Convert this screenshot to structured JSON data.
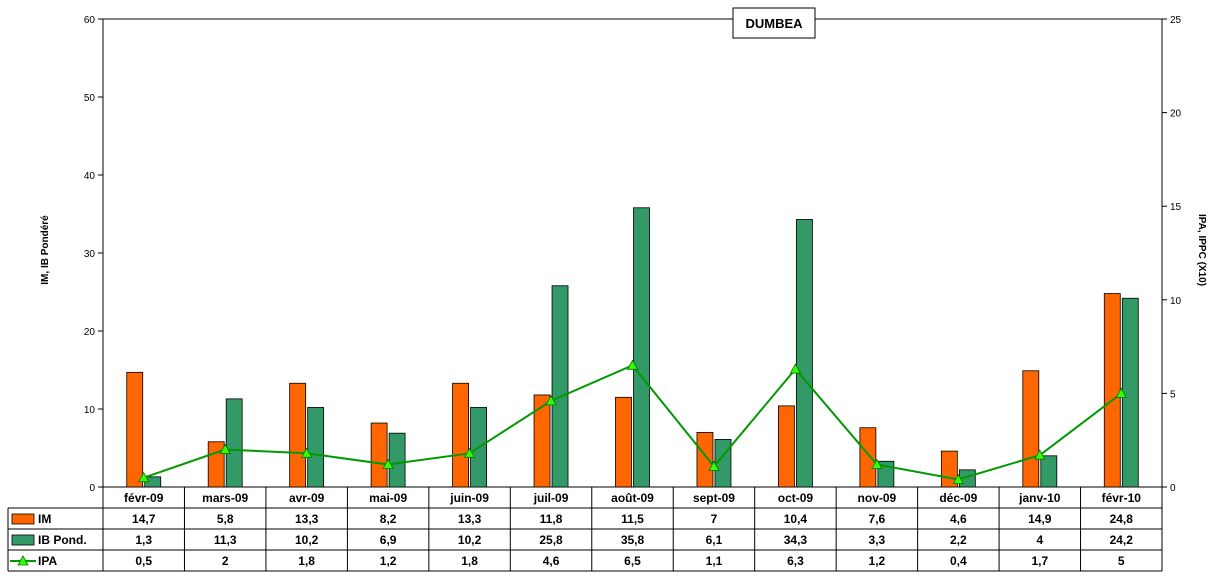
{
  "chart_data": {
    "type": "bar",
    "title": "DUMBEA",
    "categories": [
      "févr-09",
      "mars-09",
      "avr-09",
      "mai-09",
      "juin-09",
      "juil-09",
      "août-09",
      "sept-09",
      "oct-09",
      "nov-09",
      "déc-09",
      "janv-10",
      "févr-10"
    ],
    "left_axis": {
      "label": "IM, IB Pondéré",
      "ylim": [
        0,
        60
      ],
      "ticks": [
        0,
        10,
        20,
        30,
        40,
        50,
        60
      ]
    },
    "right_axis": {
      "label": "IPA, IPPC (X10)",
      "ylim": [
        0,
        25
      ],
      "ticks": [
        0,
        5,
        10,
        15,
        20,
        25
      ]
    },
    "grid": false,
    "legend": "data-table-below",
    "series": [
      {
        "name": "IM",
        "kind": "bar",
        "axis": "left",
        "color": "#ff6600",
        "values": [
          14.7,
          5.8,
          13.3,
          8.2,
          13.3,
          11.8,
          11.5,
          7,
          10.4,
          7.6,
          4.6,
          14.9,
          24.8
        ],
        "labels": [
          "14,7",
          "5,8",
          "13,3",
          "8,2",
          "13,3",
          "11,8",
          "11,5",
          "7",
          "10,4",
          "7,6",
          "4,6",
          "14,9",
          "24,8"
        ]
      },
      {
        "name": "IB Pond.",
        "kind": "bar",
        "axis": "left",
        "color": "#339966",
        "values": [
          1.3,
          11.3,
          10.2,
          6.9,
          10.2,
          25.8,
          35.8,
          6.1,
          34.3,
          3.3,
          2.2,
          4,
          24.2
        ],
        "labels": [
          "1,3",
          "11,3",
          "10,2",
          "6,9",
          "10,2",
          "25,8",
          "35,8",
          "6,1",
          "34,3",
          "3,3",
          "2,2",
          "4",
          "24,2"
        ]
      },
      {
        "name": "IPA",
        "kind": "line",
        "axis": "right",
        "color": "#009900",
        "marker_color": "#33ff00",
        "values": [
          0.5,
          2,
          1.8,
          1.2,
          1.8,
          4.6,
          6.5,
          1.1,
          6.3,
          1.2,
          0.4,
          1.7,
          5
        ],
        "labels": [
          "0,5",
          "2",
          "1,8",
          "1,2",
          "1,8",
          "4,6",
          "6,5",
          "1,1",
          "6,3",
          "1,2",
          "0,4",
          "1,7",
          "5"
        ]
      }
    ]
  }
}
